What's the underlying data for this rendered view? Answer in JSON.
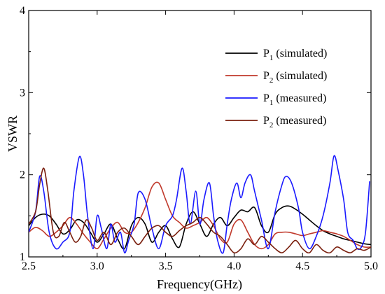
{
  "chart_data": {
    "type": "line",
    "title": "",
    "xlabel": "Frequency(GHz)",
    "ylabel": "VSWR",
    "xlim": [
      2.5,
      5.0
    ],
    "ylim": [
      1,
      4
    ],
    "xticks": [
      2.5,
      3.0,
      3.5,
      4.0,
      4.5,
      5.0
    ],
    "xtick_labels": [
      "2.5",
      "3.0",
      "3.5",
      "4.0",
      "4.5",
      "5.0"
    ],
    "yticks": [
      1,
      2,
      3,
      4
    ],
    "ytick_labels": [
      "1",
      "2",
      "3",
      "4"
    ],
    "grid": false,
    "legend_position": "top-right",
    "series": [
      {
        "name": "P1 (simulated)",
        "legend_main": "P",
        "legend_sub": "1",
        "legend_rest": " (simulated)",
        "color": "#000000",
        "x": [
          2.5,
          2.55,
          2.6,
          2.65,
          2.7,
          2.75,
          2.8,
          2.85,
          2.9,
          2.95,
          3.0,
          3.05,
          3.1,
          3.15,
          3.2,
          3.25,
          3.3,
          3.35,
          3.4,
          3.45,
          3.5,
          3.55,
          3.6,
          3.65,
          3.7,
          3.75,
          3.8,
          3.85,
          3.9,
          3.95,
          4.0,
          4.05,
          4.1,
          4.15,
          4.2,
          4.25,
          4.3,
          4.35,
          4.4,
          4.45,
          4.5,
          4.55,
          4.6,
          4.65,
          4.7,
          4.75,
          4.8,
          4.85,
          4.9,
          4.95,
          5.0
        ],
        "y": [
          1.38,
          1.48,
          1.52,
          1.5,
          1.4,
          1.28,
          1.33,
          1.45,
          1.42,
          1.3,
          1.18,
          1.28,
          1.4,
          1.22,
          1.1,
          1.38,
          1.48,
          1.4,
          1.18,
          1.3,
          1.38,
          1.22,
          1.12,
          1.4,
          1.55,
          1.4,
          1.25,
          1.4,
          1.48,
          1.38,
          1.48,
          1.57,
          1.55,
          1.6,
          1.38,
          1.3,
          1.52,
          1.6,
          1.62,
          1.58,
          1.52,
          1.45,
          1.38,
          1.32,
          1.28,
          1.25,
          1.22,
          1.2,
          1.18,
          1.16,
          1.15
        ]
      },
      {
        "name": "P2 (simulated)",
        "legend_main": "P",
        "legend_sub": "2",
        "legend_rest": " (simulated)",
        "color": "#c0392b",
        "x": [
          2.5,
          2.55,
          2.6,
          2.65,
          2.7,
          2.75,
          2.8,
          2.85,
          2.9,
          2.95,
          3.0,
          3.05,
          3.1,
          3.15,
          3.2,
          3.25,
          3.3,
          3.35,
          3.4,
          3.45,
          3.5,
          3.55,
          3.6,
          3.65,
          3.7,
          3.75,
          3.8,
          3.85,
          3.9,
          3.95,
          4.0,
          4.05,
          4.1,
          4.15,
          4.2,
          4.25,
          4.3,
          4.35,
          4.4,
          4.45,
          4.5,
          4.55,
          4.6,
          4.65,
          4.7,
          4.75,
          4.8,
          4.85,
          4.9,
          4.95,
          5.0
        ],
        "y": [
          1.3,
          1.36,
          1.32,
          1.25,
          1.3,
          1.38,
          1.48,
          1.4,
          1.28,
          1.18,
          1.1,
          1.22,
          1.35,
          1.42,
          1.3,
          1.3,
          1.42,
          1.6,
          1.85,
          1.9,
          1.7,
          1.5,
          1.42,
          1.35,
          1.38,
          1.42,
          1.48,
          1.38,
          1.22,
          1.18,
          1.4,
          1.45,
          1.3,
          1.15,
          1.1,
          1.15,
          1.28,
          1.3,
          1.3,
          1.28,
          1.26,
          1.28,
          1.3,
          1.32,
          1.3,
          1.28,
          1.25,
          1.2,
          1.15,
          1.12,
          1.12
        ]
      },
      {
        "name": "P1 (measured)",
        "legend_main": "P",
        "legend_sub": "1",
        "legend_rest": " (measured)",
        "color": "#1a1aff",
        "x": [
          2.5,
          2.55,
          2.58,
          2.61,
          2.65,
          2.7,
          2.75,
          2.8,
          2.83,
          2.87,
          2.9,
          2.93,
          2.97,
          3.0,
          3.03,
          3.07,
          3.1,
          3.13,
          3.17,
          3.2,
          3.23,
          3.27,
          3.3,
          3.35,
          3.4,
          3.45,
          3.5,
          3.55,
          3.58,
          3.62,
          3.65,
          3.68,
          3.72,
          3.75,
          3.78,
          3.82,
          3.85,
          3.88,
          3.92,
          3.95,
          3.98,
          4.02,
          4.05,
          4.08,
          4.12,
          4.15,
          4.2,
          4.25,
          4.3,
          4.35,
          4.38,
          4.42,
          4.47,
          4.5,
          4.55,
          4.6,
          4.65,
          4.7,
          4.73,
          4.76,
          4.8,
          4.83,
          4.87,
          4.9,
          4.93,
          4.96,
          4.99
        ],
        "y": [
          1.3,
          1.55,
          1.98,
          1.8,
          1.3,
          1.1,
          1.18,
          1.3,
          1.8,
          2.22,
          2.0,
          1.5,
          1.1,
          1.5,
          1.35,
          1.1,
          1.4,
          1.18,
          1.3,
          1.05,
          1.2,
          1.4,
          1.78,
          1.7,
          1.35,
          1.1,
          1.38,
          1.5,
          1.7,
          2.08,
          1.8,
          1.4,
          1.8,
          1.4,
          1.7,
          1.9,
          1.5,
          1.2,
          1.05,
          1.4,
          1.7,
          1.9,
          1.72,
          1.9,
          2.0,
          1.8,
          1.45,
          1.1,
          1.55,
          1.88,
          1.98,
          1.9,
          1.6,
          1.3,
          1.1,
          1.25,
          1.5,
          1.9,
          2.23,
          2.05,
          1.7,
          1.3,
          1.2,
          1.1,
          1.12,
          1.3,
          1.92
        ]
      },
      {
        "name": "P2 (measured)",
        "legend_main": "P",
        "legend_sub": "2",
        "legend_rest": " (measured)",
        "color": "#7a1f0e",
        "x": [
          2.5,
          2.55,
          2.58,
          2.61,
          2.64,
          2.68,
          2.72,
          2.76,
          2.8,
          2.84,
          2.88,
          2.92,
          2.96,
          3.0,
          3.05,
          3.1,
          3.15,
          3.2,
          3.25,
          3.3,
          3.35,
          3.4,
          3.45,
          3.5,
          3.55,
          3.6,
          3.65,
          3.7,
          3.75,
          3.8,
          3.85,
          3.9,
          3.95,
          4.0,
          4.05,
          4.1,
          4.15,
          4.2,
          4.25,
          4.3,
          4.35,
          4.4,
          4.45,
          4.5,
          4.55,
          4.6,
          4.65,
          4.7,
          4.75,
          4.8,
          4.85,
          4.9,
          4.95,
          5.0
        ],
        "y": [
          1.4,
          1.55,
          1.88,
          2.08,
          1.8,
          1.3,
          1.25,
          1.42,
          1.3,
          1.18,
          1.25,
          1.45,
          1.35,
          1.2,
          1.3,
          1.15,
          1.3,
          1.35,
          1.25,
          1.15,
          1.25,
          1.35,
          1.38,
          1.3,
          1.25,
          1.32,
          1.38,
          1.42,
          1.48,
          1.4,
          1.3,
          1.25,
          1.15,
          1.05,
          1.1,
          1.22,
          1.15,
          1.25,
          1.18,
          1.1,
          1.05,
          1.12,
          1.2,
          1.1,
          1.05,
          1.15,
          1.08,
          1.05,
          1.12,
          1.08,
          1.05,
          1.1,
          1.08,
          1.12
        ]
      }
    ]
  }
}
